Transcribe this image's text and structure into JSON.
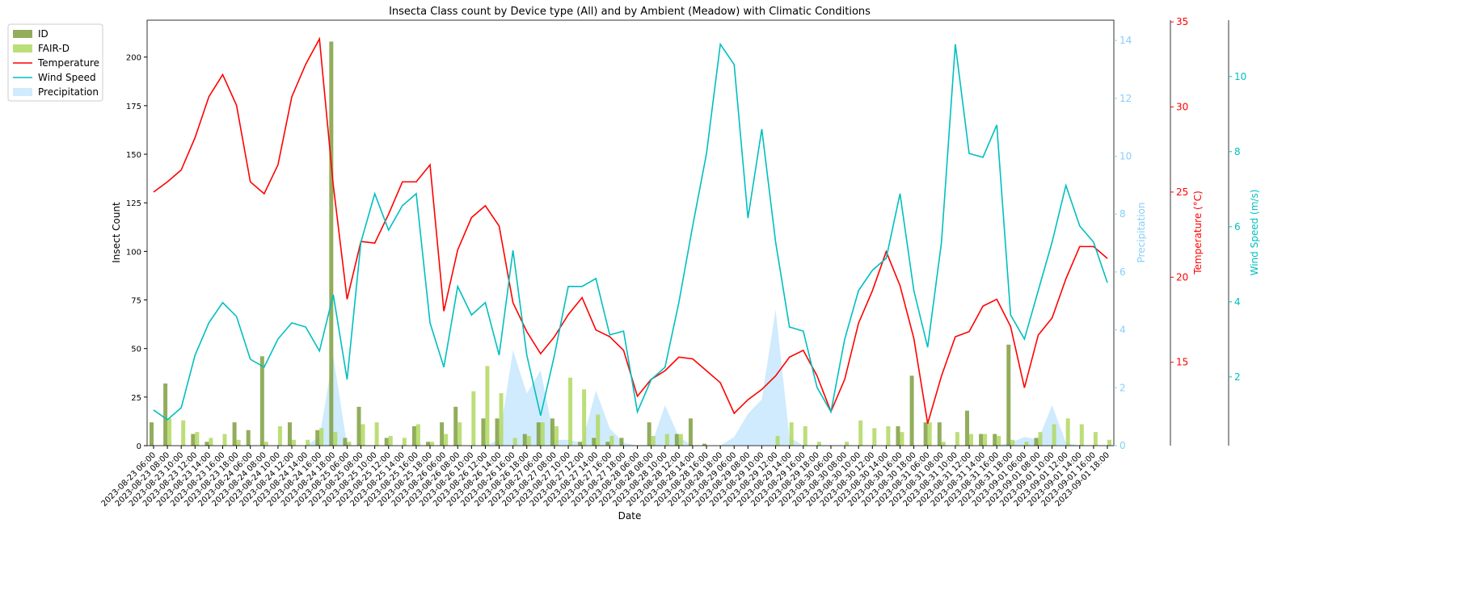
{
  "chart_data": {
    "type": "combo",
    "title": "Insecta Class count by Device type (All) and by Ambient (Meadow) with Climatic Conditions",
    "x_label": "Date",
    "y_label": "Insect Count",
    "y2_label": "Precipitation",
    "y3_label": "Temperature (°C)",
    "y4_label": "Wind Speed (m/s)",
    "legend": "upper left",
    "categories": [
      "2023-08-23 06:00",
      "2023-08-23 08:00",
      "2023-08-23 10:00",
      "2023-08-23 12:00",
      "2023-08-23 14:00",
      "2023-08-23 16:00",
      "2023-08-23 18:00",
      "2023-08-24 06:00",
      "2023-08-24 08:00",
      "2023-08-24 10:00",
      "2023-08-24 12:00",
      "2023-08-24 14:00",
      "2023-08-24 16:00",
      "2023-08-24 18:00",
      "2023-08-25 06:00",
      "2023-08-25 08:00",
      "2023-08-25 10:00",
      "2023-08-25 12:00",
      "2023-08-25 14:00",
      "2023-08-25 16:00",
      "2023-08-25 18:00",
      "2023-08-26 06:00",
      "2023-08-26 08:00",
      "2023-08-26 10:00",
      "2023-08-26 12:00",
      "2023-08-26 14:00",
      "2023-08-26 16:00",
      "2023-08-26 18:00",
      "2023-08-27 06:00",
      "2023-08-27 08:00",
      "2023-08-27 10:00",
      "2023-08-27 12:00",
      "2023-08-27 14:00",
      "2023-08-27 16:00",
      "2023-08-27 18:00",
      "2023-08-28 06:00",
      "2023-08-28 08:00",
      "2023-08-28 10:00",
      "2023-08-28 12:00",
      "2023-08-28 14:00",
      "2023-08-28 16:00",
      "2023-08-28 18:00",
      "2023-08-29 06:00",
      "2023-08-29 08:00",
      "2023-08-29 10:00",
      "2023-08-29 12:00",
      "2023-08-29 14:00",
      "2023-08-29 16:00",
      "2023-08-29 18:00",
      "2023-08-30 06:00",
      "2023-08-30 08:00",
      "2023-08-30 10:00",
      "2023-08-30 12:00",
      "2023-08-30 14:00",
      "2023-08-30 16:00",
      "2023-08-30 18:00",
      "2023-08-31 06:00",
      "2023-08-31 08:00",
      "2023-08-31 10:00",
      "2023-08-31 12:00",
      "2023-08-31 14:00",
      "2023-08-31 16:00",
      "2023-08-31 18:00",
      "2023-09-01 06:00",
      "2023-09-01 08:00",
      "2023-09-01 10:00",
      "2023-09-01 12:00",
      "2023-09-01 14:00",
      "2023-09-01 16:00",
      "2023-09-01 18:00"
    ],
    "ylim": [
      0,
      219
    ],
    "yticks": [
      0,
      25,
      50,
      75,
      100,
      125,
      150,
      175,
      200
    ],
    "y2lim": [
      0,
      14.7
    ],
    "y2ticks": [
      0,
      2,
      4,
      6,
      8,
      10,
      12,
      14
    ],
    "y3lim": [
      10.1,
      35.1
    ],
    "y3ticks": [
      15,
      20,
      25,
      30,
      35
    ],
    "y4lim": [
      0.17,
      11.5
    ],
    "y4ticks": [
      2,
      4,
      6,
      8,
      10
    ],
    "series": [
      {
        "name": "ID",
        "type": "bar",
        "axis": "y",
        "color": "#7f9f3f",
        "values": [
          12,
          32,
          0,
          6,
          2,
          0,
          12,
          8,
          46,
          0,
          12,
          0,
          8,
          208,
          4,
          20,
          0,
          4,
          0,
          10,
          2,
          12,
          20,
          0,
          14,
          14,
          0,
          6,
          12,
          14,
          0,
          2,
          4,
          2,
          4,
          0,
          12,
          0,
          6,
          14,
          1,
          0,
          0,
          0,
          0,
          0,
          0,
          0,
          0,
          0,
          0,
          0,
          0,
          0,
          10,
          36,
          12,
          12,
          0,
          18,
          6,
          6,
          52,
          0,
          4,
          0,
          0,
          0,
          0,
          0
        ]
      },
      {
        "name": "FAIR-D",
        "type": "bar",
        "axis": "y",
        "color": "#b0d860",
        "values": [
          0,
          14,
          13,
          7,
          4,
          6,
          3,
          0,
          2,
          10,
          3,
          3,
          9,
          7,
          2,
          11,
          12,
          5,
          4,
          11,
          2,
          6,
          12,
          28,
          41,
          27,
          4,
          5,
          12,
          10,
          35,
          29,
          16,
          5,
          0,
          0,
          5,
          6,
          6,
          0,
          0,
          0,
          0,
          0,
          0,
          5,
          12,
          10,
          2,
          0,
          2,
          13,
          9,
          10,
          7,
          0,
          12,
          2,
          7,
          6,
          6,
          5,
          3,
          2,
          7,
          11,
          14,
          11,
          7,
          3
        ]
      },
      {
        "name": "Temperature",
        "type": "line",
        "axis": "y3",
        "color": "#ff0000",
        "values": [
          25.0,
          25.6,
          26.3,
          28.2,
          30.6,
          31.9,
          30.1,
          25.6,
          24.9,
          26.6,
          30.6,
          32.5,
          34.0,
          25.4,
          18.7,
          22.1,
          22.0,
          23.7,
          25.6,
          25.6,
          26.6,
          18.0,
          21.6,
          23.5,
          24.2,
          23.0,
          18.5,
          16.8,
          15.5,
          16.5,
          17.8,
          18.8,
          16.9,
          16.5,
          15.7,
          13.0,
          14.0,
          14.5,
          15.3,
          15.2,
          14.5,
          13.8,
          12.0,
          12.8,
          13.4,
          14.2,
          15.3,
          15.7,
          14.2,
          12.1,
          14.0,
          17.3,
          19.2,
          21.5,
          19.5,
          16.4,
          11.4,
          14.2,
          16.5,
          16.8,
          18.3,
          18.7,
          17.1,
          13.5,
          16.6,
          17.6,
          19.9,
          21.8,
          21.8,
          21.1
        ]
      },
      {
        "name": "Wind Speed",
        "type": "line",
        "axis": "y4",
        "color": "#00bfbf",
        "values": [
          1.12,
          0.86,
          1.18,
          2.58,
          3.44,
          3.98,
          3.61,
          2.47,
          2.26,
          3.01,
          3.44,
          3.33,
          2.69,
          4.19,
          1.93,
          5.59,
          6.88,
          5.91,
          6.56,
          6.88,
          3.44,
          2.26,
          4.41,
          3.65,
          3.98,
          2.58,
          5.37,
          2.58,
          0.97,
          2.58,
          4.41,
          4.41,
          4.62,
          3.12,
          3.22,
          1.07,
          1.93,
          2.26,
          3.98,
          6.02,
          7.95,
          10.86,
          10.32,
          6.23,
          8.6,
          5.59,
          3.33,
          3.22,
          1.72,
          1.07,
          3.01,
          4.3,
          4.84,
          5.16,
          6.88,
          4.3,
          2.79,
          5.59,
          10.86,
          7.95,
          7.85,
          8.71,
          3.65,
          3.01,
          4.3,
          5.59,
          7.1,
          6.02,
          5.59,
          4.51
        ]
      },
      {
        "name": "Precipitation",
        "type": "area",
        "axis": "y2",
        "color": "#87cefa",
        "values": [
          0,
          0,
          0,
          0,
          0,
          0,
          0,
          0,
          0,
          0,
          0,
          0,
          0.3,
          3.1,
          0,
          0,
          0,
          0,
          0,
          0,
          0,
          0,
          0,
          0,
          0,
          0.2,
          3.3,
          1.8,
          2.6,
          0.2,
          0.2,
          0.1,
          1.9,
          0.6,
          0.1,
          0,
          0,
          1.4,
          0.3,
          0,
          0,
          0,
          0.3,
          1.1,
          1.6,
          4.7,
          0.3,
          0,
          0,
          0,
          0,
          0,
          0,
          0,
          0,
          0,
          0,
          0,
          0,
          0,
          0,
          0,
          0.1,
          0.3,
          0.2,
          1.4,
          0.1,
          0,
          0,
          0
        ]
      }
    ]
  }
}
